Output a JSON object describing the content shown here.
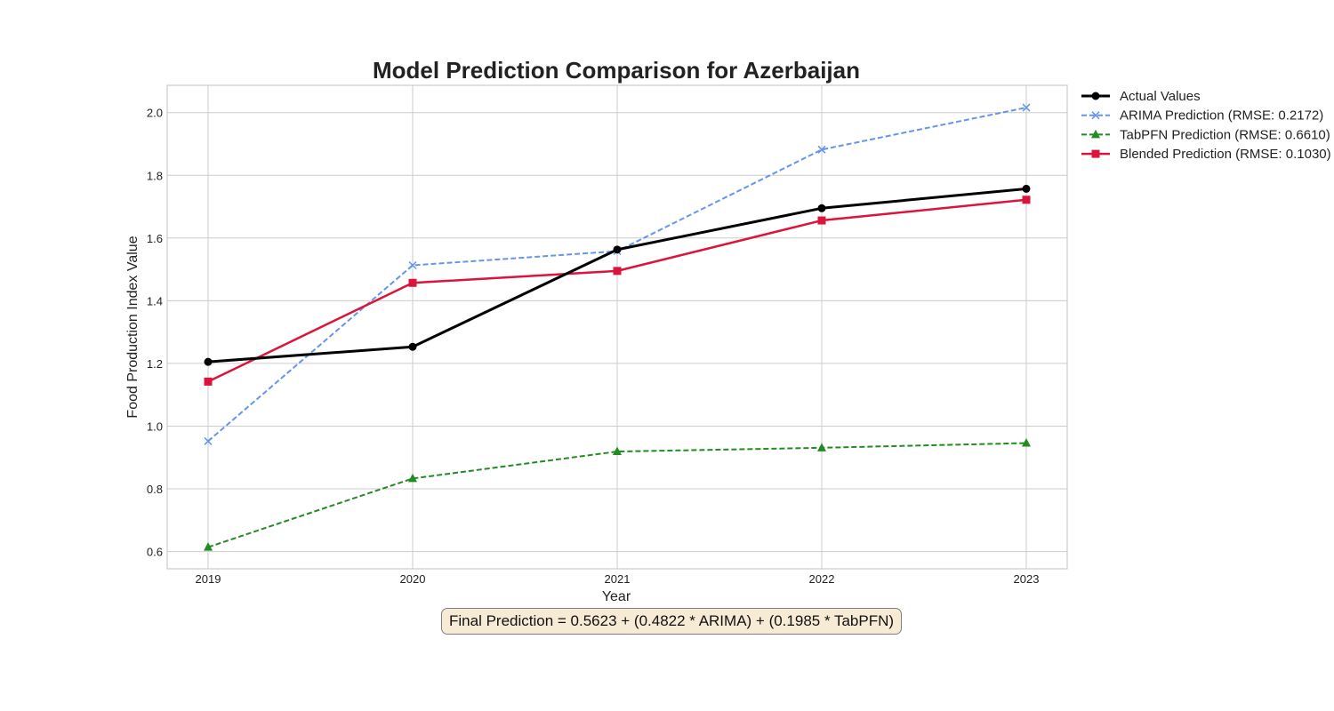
{
  "chart_data": {
    "type": "line",
    "title": "Model Prediction Comparison for Azerbaijan",
    "xlabel": "Year",
    "ylabel": "Food Production Index Value",
    "x": [
      2019,
      2020,
      2021,
      2022,
      2023
    ],
    "x_tick_labels": [
      "2019",
      "2020",
      "2021",
      "2022",
      "2023"
    ],
    "ylim": [
      0.545,
      2.087
    ],
    "y_ticks": [
      0.6,
      0.8,
      1.0,
      1.2,
      1.4,
      1.6,
      1.8,
      2.0
    ],
    "y_tick_labels": [
      "0.6",
      "0.8",
      "1.0",
      "1.2",
      "1.4",
      "1.6",
      "1.8",
      "2.0"
    ],
    "grid": true,
    "legend_position": "outside-top-right",
    "series": [
      {
        "name": "Actual Values",
        "color": "#000000",
        "dashed": false,
        "marker": "circle",
        "line_width": 3,
        "values": [
          1.205,
          1.253,
          1.563,
          1.695,
          1.757
        ]
      },
      {
        "name": "ARIMA Prediction (RMSE: 0.2172)",
        "color": "#6495ed",
        "dashed": true,
        "marker": "x",
        "line_width": 2,
        "values": [
          0.952,
          1.513,
          1.558,
          1.882,
          2.016
        ]
      },
      {
        "name": "TabPFN Prediction (RMSE: 0.6610)",
        "color": "#228b22",
        "dashed": true,
        "marker": "triangle",
        "line_width": 2,
        "values": [
          0.614,
          0.833,
          0.919,
          0.931,
          0.946
        ]
      },
      {
        "name": "Blended Prediction (RMSE: 0.1030)",
        "color": "#dc143c",
        "dashed": false,
        "marker": "square",
        "line_width": 2.5,
        "values": [
          1.142,
          1.457,
          1.495,
          1.656,
          1.722
        ]
      }
    ],
    "annotation": "Final Prediction = 0.5623 + (0.4822 * ARIMA) + (0.1985 * TabPFN)"
  }
}
